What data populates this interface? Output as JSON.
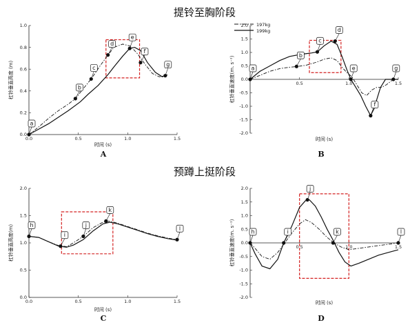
{
  "titles": {
    "top": "提铃至胸阶段",
    "bottom": "预蹲上挺阶段"
  },
  "legend": {
    "series1": "197kg",
    "series2": "199kg"
  },
  "chart_data": [
    {
      "panel": "A",
      "type": "line",
      "xlabel": "时间 (s)",
      "ylabel": "杠铃垂直高度 (m)",
      "xlim": [
        0,
        1.5
      ],
      "ylim": [
        0,
        1.0
      ],
      "xticks": [
        "0.0",
        "0.5",
        "1.0",
        "1.5"
      ],
      "yticks": [
        "0.0",
        "0.2",
        "0.4",
        "0.6",
        "0.8",
        "1.0"
      ],
      "series": [
        {
          "name": "197kg",
          "style": "dashdot",
          "x": [
            0,
            0.1,
            0.2,
            0.3,
            0.4,
            0.47,
            0.55,
            0.63,
            0.72,
            0.8,
            0.86,
            0.95,
            1.03,
            1.1,
            1.18,
            1.25,
            1.32,
            1.38,
            1.4
          ],
          "y": [
            0,
            0.07,
            0.15,
            0.22,
            0.28,
            0.33,
            0.42,
            0.51,
            0.63,
            0.73,
            0.8,
            0.83,
            0.81,
            0.74,
            0.64,
            0.56,
            0.53,
            0.54,
            0.54
          ]
        },
        {
          "name": "199kg",
          "style": "solid",
          "x": [
            0,
            0.1,
            0.2,
            0.3,
            0.4,
            0.52,
            0.6,
            0.7,
            0.8,
            0.86,
            0.95,
            1.02,
            1.07,
            1.13,
            1.2,
            1.28,
            1.35,
            1.4
          ],
          "y": [
            0,
            0.05,
            0.1,
            0.16,
            0.22,
            0.3,
            0.37,
            0.45,
            0.55,
            0.62,
            0.72,
            0.79,
            0.8,
            0.77,
            0.66,
            0.57,
            0.53,
            0.55
          ]
        }
      ],
      "point_labels": [
        {
          "label": "a",
          "x": 0.0,
          "y": 0.0
        },
        {
          "label": "b",
          "x": 0.47,
          "y": 0.33
        },
        {
          "label": "c",
          "x": 0.63,
          "y": 0.51
        },
        {
          "label": "d",
          "x": 0.8,
          "y": 0.73
        },
        {
          "label": "e",
          "x": 1.02,
          "y": 0.79
        },
        {
          "label": "f",
          "x": 1.13,
          "y": 0.66
        },
        {
          "label": "g",
          "x": 1.38,
          "y": 0.54
        }
      ],
      "highlight": {
        "x": [
          0.78,
          1.12
        ],
        "y": [
          0.52,
          0.87
        ]
      }
    },
    {
      "panel": "B",
      "type": "line",
      "xlabel": "时间 (s)",
      "ylabel": "杠铃垂直速度(m. s⁻¹)",
      "xlim": [
        0,
        1.5
      ],
      "ylim": [
        -2.0,
        2.0
      ],
      "xticks": [
        "0.5",
        "1.0",
        "1.5"
      ],
      "yticks": [
        "2.0",
        "1.5",
        "1.0",
        "0.5",
        "0.0",
        "-0.5",
        "-1.0",
        "-1.5",
        "-2.0"
      ],
      "series": [
        {
          "name": "197kg",
          "style": "dashdot",
          "x": [
            0,
            0.1,
            0.2,
            0.3,
            0.4,
            0.48,
            0.56,
            0.62,
            0.68,
            0.75,
            0.82,
            0.88,
            0.93,
            0.98,
            1.03,
            1.08,
            1.13,
            1.18,
            1.23,
            1.28,
            1.33,
            1.38,
            1.43,
            1.46
          ],
          "y": [
            0,
            0.15,
            0.3,
            0.4,
            0.45,
            0.48,
            0.52,
            0.58,
            0.65,
            0.75,
            0.8,
            0.7,
            0.45,
            0.25,
            0.1,
            -0.2,
            -0.5,
            -0.6,
            -0.4,
            -0.3,
            -0.3,
            -0.2,
            -0.05,
            0
          ]
        },
        {
          "name": "199kg",
          "style": "solid",
          "x": [
            0,
            0.1,
            0.2,
            0.3,
            0.4,
            0.5,
            0.56,
            0.62,
            0.68,
            0.75,
            0.82,
            0.88,
            0.93,
            0.98,
            1.02,
            1.07,
            1.12,
            1.17,
            1.22,
            1.27,
            1.32,
            1.37,
            1.41,
            1.45,
            1.5
          ],
          "y": [
            0,
            0.3,
            0.5,
            0.7,
            0.85,
            0.92,
            0.95,
            0.98,
            1.02,
            1.25,
            1.42,
            1.3,
            0.85,
            0.35,
            0.0,
            -0.3,
            -0.6,
            -1.0,
            -1.35,
            -0.9,
            -0.3,
            0.0,
            0.0,
            0.0,
            0.0
          ]
        }
      ],
      "point_labels": [
        {
          "label": "a",
          "x": 0.0,
          "y": 0.0
        },
        {
          "label": "b",
          "x": 0.47,
          "y": 0.48
        },
        {
          "label": "c",
          "x": 0.68,
          "y": 1.02
        },
        {
          "label": "d",
          "x": 0.86,
          "y": 1.42
        },
        {
          "label": "e",
          "x": 1.02,
          "y": 0.0
        },
        {
          "label": "f",
          "x": 1.22,
          "y": -1.35
        },
        {
          "label": "g",
          "x": 1.45,
          "y": 0.0
        }
      ],
      "highlight": {
        "x": [
          0.6,
          0.92
        ],
        "y": [
          0.25,
          1.45
        ]
      }
    },
    {
      "panel": "C",
      "type": "line",
      "xlabel": "时间 (s)",
      "ylabel": "杠铃垂直高度(m)",
      "xlim": [
        0,
        1.5
      ],
      "ylim": [
        0,
        2.0
      ],
      "xticks": [
        "0.0",
        "0.5",
        "1.0",
        "1.5"
      ],
      "yticks": [
        "0.0",
        "0.5",
        "1.0",
        "1.5",
        "2.0"
      ],
      "series": [
        {
          "name": "197kg",
          "style": "dashdot",
          "x": [
            0,
            0.1,
            0.2,
            0.3,
            0.38,
            0.45,
            0.55,
            0.65,
            0.75,
            0.82,
            0.9,
            1.0,
            1.1,
            1.2,
            1.3,
            1.4,
            1.5
          ],
          "y": [
            1.12,
            1.1,
            1.02,
            0.95,
            0.93,
            1.0,
            1.12,
            1.28,
            1.38,
            1.4,
            1.36,
            1.3,
            1.24,
            1.18,
            1.13,
            1.09,
            1.06
          ]
        },
        {
          "name": "199kg",
          "style": "solid",
          "x": [
            0,
            0.1,
            0.2,
            0.3,
            0.38,
            0.45,
            0.55,
            0.65,
            0.75,
            0.82,
            0.9,
            1.0,
            1.1,
            1.2,
            1.3,
            1.4,
            1.5
          ],
          "y": [
            1.12,
            1.1,
            1.02,
            0.94,
            0.92,
            0.96,
            1.06,
            1.22,
            1.35,
            1.38,
            1.35,
            1.29,
            1.23,
            1.17,
            1.12,
            1.08,
            1.05
          ]
        }
      ],
      "point_labels": [
        {
          "label": "h",
          "x": 0.0,
          "y": 1.12
        },
        {
          "label": "i",
          "x": 0.32,
          "y": 0.94
        },
        {
          "label": "j",
          "x": 0.55,
          "y": 1.12
        },
        {
          "label": "k",
          "x": 0.78,
          "y": 1.4
        },
        {
          "label": "l",
          "x": 1.5,
          "y": 1.06
        }
      ],
      "highlight": {
        "x": [
          0.33,
          0.85
        ],
        "y": [
          0.8,
          1.57
        ]
      }
    },
    {
      "panel": "D",
      "type": "line",
      "xlabel": "时间 (s)",
      "ylabel": "杠铃垂直速度(m. s⁻¹)",
      "xlim": [
        0,
        1.5
      ],
      "ylim": [
        -2.0,
        2.0
      ],
      "xticks": [
        "0.5",
        "1.0",
        "1.5"
      ],
      "yticks": [
        "2.0",
        "1.5",
        "1.0",
        "0.5",
        "0.0",
        "-0.5",
        "-1.0",
        "-1.5",
        "-2.0"
      ],
      "series": [
        {
          "name": "197kg",
          "style": "dashdot",
          "x": [
            0,
            0.05,
            0.12,
            0.2,
            0.28,
            0.35,
            0.42,
            0.5,
            0.56,
            0.62,
            0.7,
            0.78,
            0.85,
            0.92,
            1.0,
            1.1,
            1.2,
            1.3,
            1.4,
            1.5
          ],
          "y": [
            0,
            -0.2,
            -0.5,
            -0.6,
            -0.35,
            0.0,
            0.35,
            0.7,
            0.85,
            0.75,
            0.5,
            0.2,
            0.0,
            -0.15,
            -0.25,
            -0.2,
            -0.15,
            -0.1,
            -0.05,
            0.0
          ]
        },
        {
          "name": "199kg",
          "style": "solid",
          "x": [
            0,
            0.05,
            0.12,
            0.2,
            0.28,
            0.34,
            0.42,
            0.5,
            0.56,
            0.6,
            0.66,
            0.72,
            0.78,
            0.84,
            0.9,
            0.96,
            1.02,
            1.1,
            1.2,
            1.3,
            1.4,
            1.5
          ],
          "y": [
            0,
            -0.4,
            -0.85,
            -0.95,
            -0.6,
            0.0,
            0.6,
            1.3,
            1.55,
            1.58,
            1.35,
            0.95,
            0.5,
            0.1,
            -0.35,
            -0.7,
            -0.85,
            -0.75,
            -0.6,
            -0.45,
            -0.35,
            -0.25
          ]
        }
      ],
      "point_labels": [
        {
          "label": "h",
          "x": 0.0,
          "y": 0.0
        },
        {
          "label": "i",
          "x": 0.34,
          "y": 0.0
        },
        {
          "label": "j",
          "x": 0.58,
          "y": 1.58
        },
        {
          "label": "k",
          "x": 0.84,
          "y": 0.0
        },
        {
          "label": "l",
          "x": 1.5,
          "y": 0.0
        }
      ],
      "highlight": {
        "x": [
          0.5,
          1.0
        ],
        "y": [
          -1.3,
          1.8
        ]
      }
    }
  ]
}
